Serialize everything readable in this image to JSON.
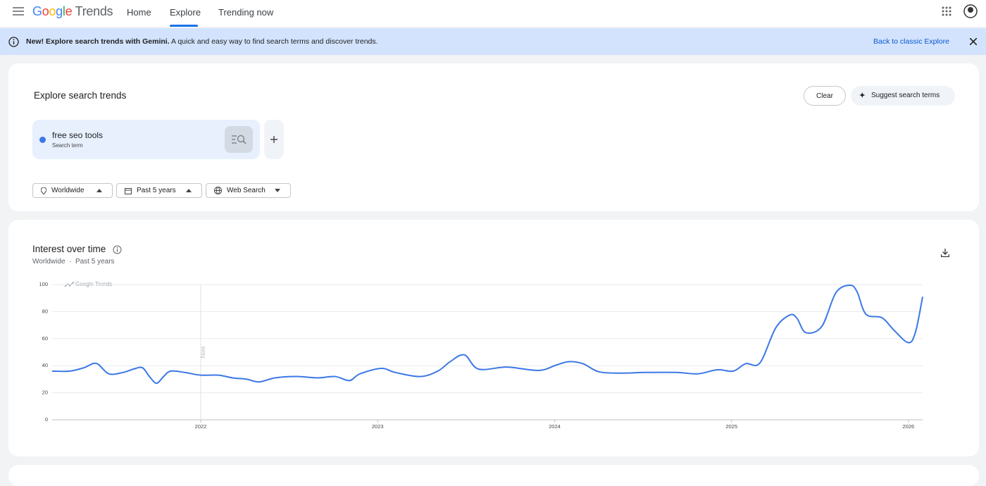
{
  "header": {
    "logo": "Google",
    "logo_suffix": "Trends",
    "nav": [
      "Home",
      "Explore",
      "Trending now"
    ],
    "active_nav": 1
  },
  "banner": {
    "bold": "New! Explore search trends with Gemini.",
    "text": "A quick and easy way to find search terms and discover trends.",
    "link": "Back to classic Explore"
  },
  "explore": {
    "title": "Explore search trends",
    "clear": "Clear",
    "suggest": "Suggest search terms",
    "term": {
      "name": "free seo tools",
      "kind": "Search term"
    },
    "filters": [
      "Worldwide",
      "Past 5 years",
      "Web Search"
    ]
  },
  "interest": {
    "title": "Interest over time",
    "subtitle": [
      "Worldwide",
      "Past 5 years"
    ],
    "watermark": "Google Trends"
  },
  "chart_data": {
    "type": "line",
    "color": "#3b78e7",
    "grid": true,
    "x": [
      2021.16,
      2021.26,
      2021.34,
      2021.41,
      2021.48,
      2021.56,
      2021.62,
      2021.67,
      2021.71,
      2021.75,
      2021.79,
      2021.83,
      2021.91,
      2022.0,
      2022.1,
      2022.18,
      2022.26,
      2022.33,
      2022.42,
      2022.54,
      2022.66,
      2022.76,
      2022.84,
      2022.9,
      2023.02,
      2023.1,
      2023.24,
      2023.34,
      2023.41,
      2023.49,
      2023.57,
      2023.73,
      2023.91,
      2024.01,
      2024.08,
      2024.16,
      2024.25,
      2024.37,
      2024.51,
      2024.69,
      2024.81,
      2024.92,
      2025.01,
      2025.08,
      2025.16,
      2025.25,
      2025.33,
      2025.37,
      2025.42,
      2025.51,
      2025.59,
      2025.67,
      2025.71,
      2025.76,
      2025.85,
      2025.92,
      2026.0,
      2026.04,
      2026.08
    ],
    "values": [
      36,
      36,
      38.5,
      41.7,
      34,
      35,
      37.5,
      38.5,
      32,
      27,
      32,
      36,
      35,
      33,
      33,
      31,
      30,
      28,
      31,
      32,
      31,
      32,
      29,
      34,
      38,
      35,
      32,
      36,
      43,
      48,
      37.5,
      39,
      36.5,
      40.5,
      43,
      41.5,
      35.5,
      34.5,
      35,
      35,
      34,
      37,
      36,
      41.5,
      42,
      68,
      77.5,
      75,
      64.5,
      69,
      94,
      99.5,
      94.5,
      78,
      75.5,
      66,
      57,
      65,
      91
    ],
    "xlim": [
      2021.16,
      2026.08
    ],
    "xticks": [
      2022,
      2023,
      2024,
      2025,
      2026
    ],
    "ylim": [
      0,
      100
    ],
    "yticks": [
      0,
      20,
      40,
      60,
      80,
      100
    ],
    "annotation": {
      "x": 2022,
      "label": "Note"
    }
  }
}
